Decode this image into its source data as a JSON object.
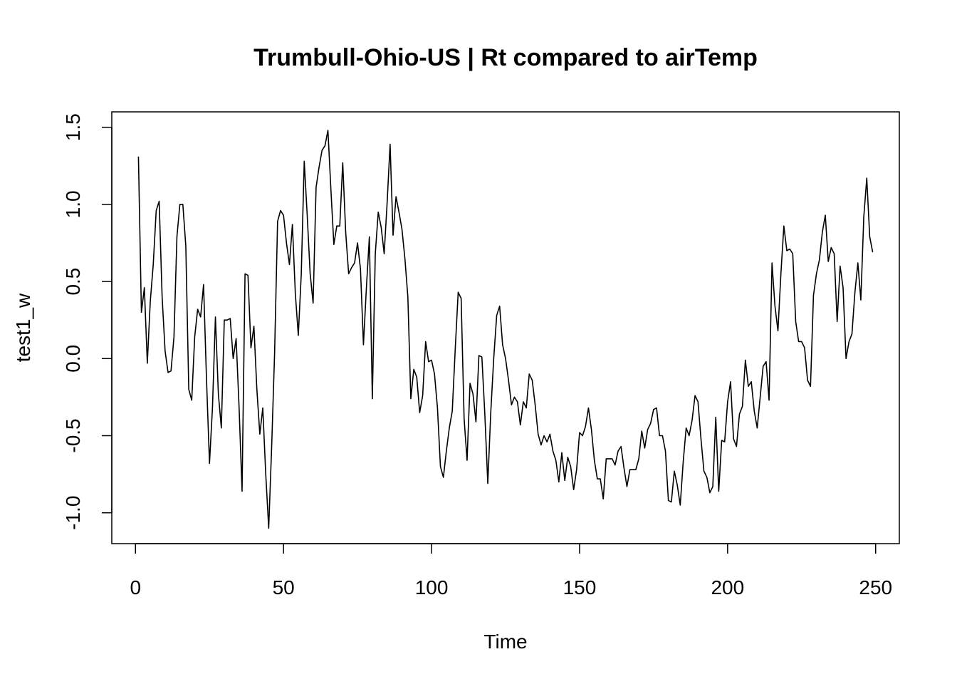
{
  "chart_data": {
    "type": "line",
    "title": "Trumbull-Ohio-US | Rt compared to airTemp",
    "xlabel": "Time",
    "ylabel": "test1_w",
    "xlim": [
      -8,
      258
    ],
    "ylim": [
      -1.2,
      1.6
    ],
    "xticks": [
      0,
      50,
      100,
      150,
      200,
      250
    ],
    "xtick_labels": [
      "0",
      "50",
      "100",
      "150",
      "200",
      "250"
    ],
    "yticks": [
      -1.0,
      -0.5,
      0.0,
      0.5,
      1.0,
      1.5
    ],
    "ytick_labels": [
      "-1.0",
      "-0.5",
      "0.0",
      "0.5",
      "1.0",
      "1.5"
    ],
    "grid": false,
    "line_color": "#000000",
    "series": [
      {
        "x_start": 1,
        "values": [
          1.31,
          0.3,
          0.46,
          -0.03,
          0.37,
          0.61,
          0.96,
          1.02,
          0.4,
          0.05,
          -0.09,
          -0.08,
          0.14,
          0.79,
          1.0,
          1.0,
          0.73,
          -0.2,
          -0.27,
          0.14,
          0.32,
          0.27,
          0.48,
          -0.14,
          -0.68,
          -0.32,
          0.27,
          -0.23,
          -0.45,
          0.25,
          0.25,
          0.26,
          0.0,
          0.13,
          -0.32,
          -0.86,
          0.55,
          0.54,
          0.07,
          0.21,
          -0.2,
          -0.49,
          -0.32,
          -0.75,
          -1.1,
          -0.57,
          0.04,
          0.89,
          0.96,
          0.93,
          0.75,
          0.61,
          0.87,
          0.42,
          0.15,
          0.55,
          1.28,
          0.93,
          0.55,
          0.36,
          1.11,
          1.24,
          1.35,
          1.38,
          1.48,
          1.1,
          0.74,
          0.86,
          0.86,
          1.27,
          0.82,
          0.55,
          0.59,
          0.62,
          0.75,
          0.58,
          0.09,
          0.46,
          0.79,
          -0.26,
          0.68,
          0.95,
          0.85,
          0.68,
          1.01,
          1.39,
          0.8,
          1.05,
          0.95,
          0.84,
          0.65,
          0.4,
          -0.26,
          -0.07,
          -0.12,
          -0.35,
          -0.24,
          0.11,
          -0.02,
          -0.01,
          -0.1,
          -0.32,
          -0.7,
          -0.77,
          -0.6,
          -0.45,
          -0.34,
          0.06,
          0.43,
          0.39,
          -0.39,
          -0.66,
          -0.16,
          -0.23,
          -0.41,
          0.02,
          0.01,
          -0.36,
          -0.81,
          -0.35,
          0.0,
          0.28,
          0.34,
          0.09,
          0.0,
          -0.14,
          -0.3,
          -0.25,
          -0.28,
          -0.43,
          -0.28,
          -0.32,
          -0.1,
          -0.14,
          -0.3,
          -0.49,
          -0.56,
          -0.5,
          -0.54,
          -0.49,
          -0.6,
          -0.66,
          -0.8,
          -0.61,
          -0.79,
          -0.64,
          -0.7,
          -0.85,
          -0.72,
          -0.48,
          -0.5,
          -0.44,
          -0.32,
          -0.46,
          -0.66,
          -0.78,
          -0.78,
          -0.91,
          -0.65,
          -0.65,
          -0.65,
          -0.69,
          -0.6,
          -0.57,
          -0.71,
          -0.83,
          -0.72,
          -0.72,
          -0.72,
          -0.65,
          -0.47,
          -0.58,
          -0.46,
          -0.42,
          -0.33,
          -0.32,
          -0.5,
          -0.5,
          -0.6,
          -0.92,
          -0.93,
          -0.73,
          -0.82,
          -0.95,
          -0.67,
          -0.45,
          -0.5,
          -0.4,
          -0.24,
          -0.28,
          -0.52,
          -0.73,
          -0.77,
          -0.87,
          -0.83,
          -0.38,
          -0.86,
          -0.53,
          -0.54,
          -0.28,
          -0.15,
          -0.52,
          -0.57,
          -0.36,
          -0.31,
          -0.01,
          -0.18,
          -0.15,
          -0.34,
          -0.45,
          -0.25,
          -0.05,
          -0.02,
          -0.27,
          0.62,
          0.34,
          0.18,
          0.55,
          0.86,
          0.7,
          0.71,
          0.68,
          0.24,
          0.11,
          0.11,
          0.07,
          -0.14,
          -0.18,
          0.41,
          0.55,
          0.64,
          0.82,
          0.93,
          0.63,
          0.72,
          0.68,
          0.24,
          0.6,
          0.46,
          0.0,
          0.11,
          0.16,
          0.43,
          0.62,
          0.38,
          0.92,
          1.17,
          0.79,
          0.69
        ]
      }
    ]
  }
}
